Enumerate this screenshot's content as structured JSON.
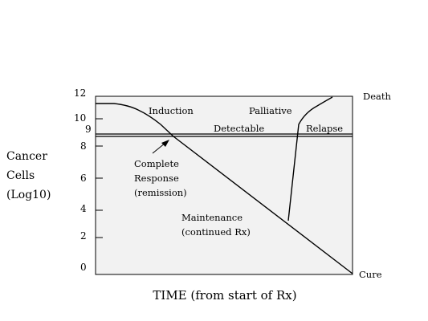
{
  "y_axis_label": [
    "Cancer",
    "Cells",
    "(Log10)"
  ],
  "x_axis_label": "TIME (from start of Rx)",
  "y_ticks": [
    {
      "value": 12,
      "label": "12"
    },
    {
      "value": 10,
      "label": "10"
    },
    {
      "value": 9,
      "label": "9"
    },
    {
      "value": 8,
      "label": "8"
    },
    {
      "value": 6,
      "label": "6"
    },
    {
      "value": 4,
      "label": "4"
    },
    {
      "value": 2,
      "label": "2"
    },
    {
      "value": 0,
      "label": "0"
    }
  ],
  "labels": {
    "death": "Death",
    "cure": "Cure",
    "induction": "Induction",
    "palliative": "Palliative",
    "detectable": "Detectable",
    "relapse": "Relapse",
    "complete_response": [
      "Complete",
      "Response",
      "(remission)"
    ],
    "maintenance": [
      "Maintenance",
      "(continued Rx)"
    ]
  },
  "colors": {
    "plot_background": "#f2f2f2",
    "line": "#000000"
  }
}
